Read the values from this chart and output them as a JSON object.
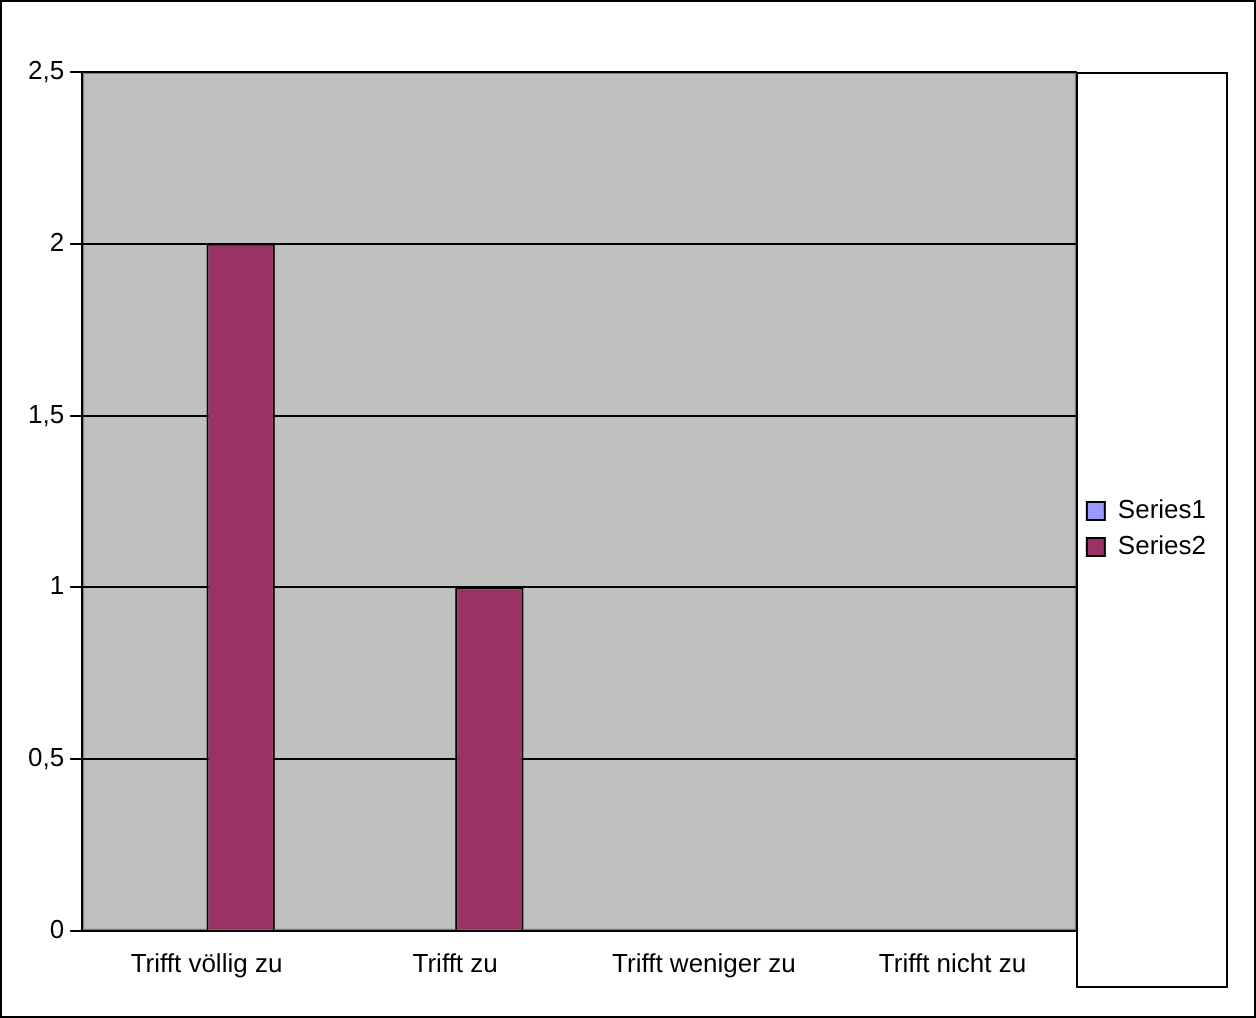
{
  "chart_data": {
    "type": "bar",
    "categories": [
      "Trifft völlig zu",
      "Trifft zu",
      "Trifft weniger zu",
      "Trifft nicht zu"
    ],
    "series": [
      {
        "name": "Series1",
        "color": "#9999ff",
        "values": [
          0,
          0,
          0,
          0
        ]
      },
      {
        "name": "Series2",
        "color": "#993366",
        "values": [
          2,
          1,
          0,
          0
        ]
      }
    ],
    "ylim": [
      0,
      2.5
    ],
    "yticks": [
      0,
      {
        "value": 0.5,
        "label": "0,5"
      },
      1,
      {
        "value": 1.5,
        "label": "1,5"
      },
      2,
      {
        "value": 2.5,
        "label": "2,5"
      }
    ],
    "grid": "y",
    "legend": "right"
  }
}
